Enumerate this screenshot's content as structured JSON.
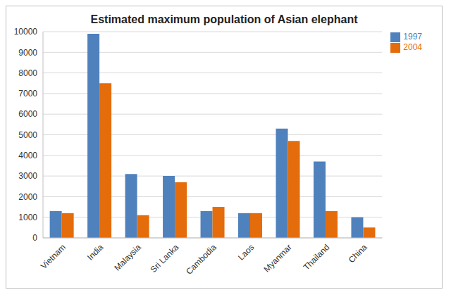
{
  "chart_data": {
    "type": "bar",
    "title": "Estimated maximum population of Asian elephant",
    "categories": [
      "Vietnam",
      "India",
      "Malaysia",
      "Sri Lanka",
      "Cambodia",
      "Laos",
      "Myanmar",
      "Thailand",
      "China"
    ],
    "series": [
      {
        "name": "1997",
        "color": "#4f81bd",
        "values": [
          1300,
          9900,
          3100,
          3000,
          1300,
          1200,
          5300,
          3700,
          1000
        ]
      },
      {
        "name": "2004",
        "color": "#e46c0a",
        "values": [
          1200,
          7500,
          1100,
          2700,
          1500,
          1200,
          4700,
          1300,
          500
        ]
      }
    ],
    "ylim": [
      0,
      10000
    ],
    "yticks": [
      0,
      1000,
      2000,
      3000,
      4000,
      5000,
      6000,
      7000,
      8000,
      9000,
      10000
    ],
    "grid": true,
    "legend": "top right"
  }
}
